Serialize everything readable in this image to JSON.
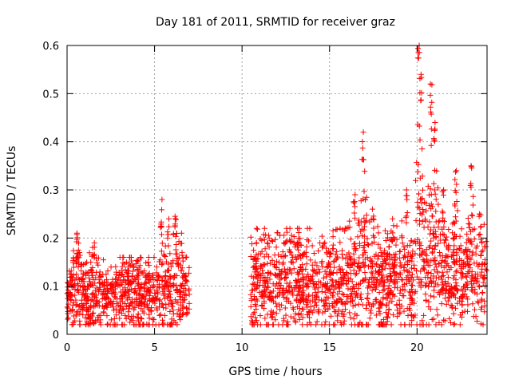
{
  "chart_data": {
    "type": "scatter",
    "title": "Day 181 of 2011, SRMTID for receiver graz",
    "xlabel": "GPS time / hours",
    "ylabel": "SRMTID / TECUs",
    "xlim": [
      0,
      24
    ],
    "ylim": [
      0,
      0.6
    ],
    "xticks": [
      0,
      5,
      10,
      15,
      20
    ],
    "xtick_labels": [
      "0",
      "5",
      "10",
      "15",
      "20"
    ],
    "yticks": [
      0,
      0.1,
      0.2,
      0.3,
      0.4,
      0.5,
      0.6
    ],
    "ytick_labels": [
      "0",
      "0.1",
      "0.2",
      "0.3",
      "0.4",
      "0.5",
      "0.6"
    ],
    "grid": true,
    "marker": "+",
    "series": [
      {
        "name": "SRMTID",
        "color": "#ff0000",
        "segments": [
          {
            "x_range": [
              0,
              7.0
            ],
            "typical_range": [
              0.02,
              0.16
            ],
            "peaks": [
              [
                0.6,
                0.21
              ],
              [
                1.5,
                0.19
              ],
              [
                5.4,
                0.28
              ],
              [
                5.8,
                0.24
              ],
              [
                6.2,
                0.245
              ],
              [
                6.6,
                0.21
              ]
            ]
          },
          {
            "x_range": [
              10.5,
              24.0
            ],
            "typical_range": [
              0.02,
              0.22
            ],
            "peaks": [
              [
                10.8,
                0.19
              ],
              [
                13.2,
                0.22
              ],
              [
                16.4,
                0.29
              ],
              [
                16.9,
                0.42
              ],
              [
                17.5,
                0.26
              ],
              [
                18.6,
                0.24
              ],
              [
                19.4,
                0.3
              ],
              [
                20.1,
                0.6
              ],
              [
                20.2,
                0.54
              ],
              [
                20.8,
                0.52
              ],
              [
                21.0,
                0.44
              ],
              [
                21.5,
                0.3
              ],
              [
                22.2,
                0.34
              ],
              [
                23.1,
                0.35
              ],
              [
                23.6,
                0.25
              ]
            ]
          }
        ]
      }
    ]
  }
}
